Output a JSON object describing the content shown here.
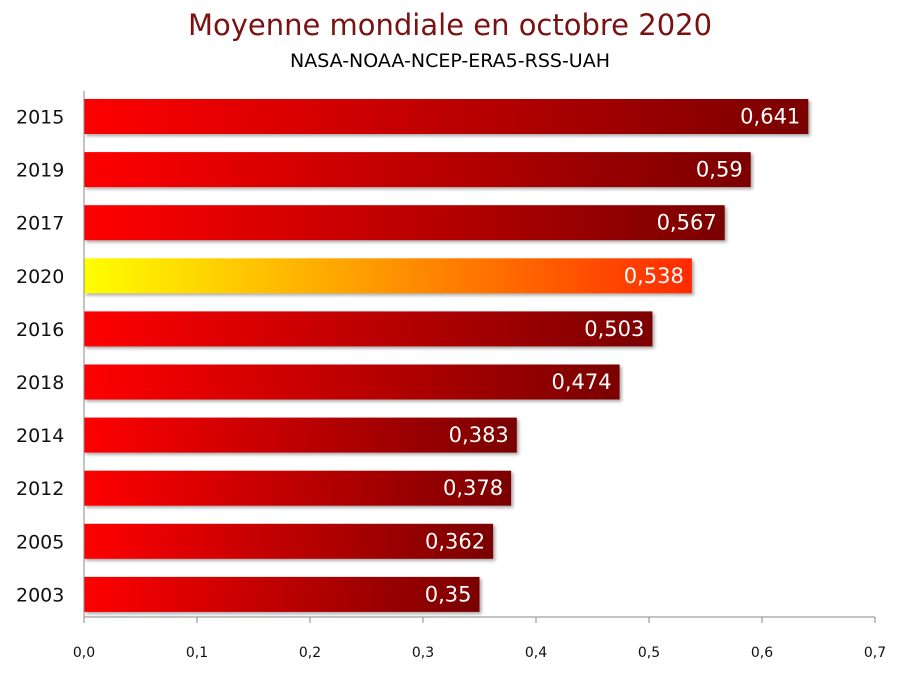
{
  "title": "Moyenne mondiale en octobre 2020",
  "subtitle": "NASA-NOAA-NCEP-ERA5-RSS-UAH",
  "colors": {
    "bar_start": "#ff0000",
    "bar_end": "#7a0000",
    "highlight_start": "#ffff00",
    "highlight_end": "#ff2a00",
    "title": "#7a1212"
  },
  "chart_data": {
    "type": "bar",
    "orientation": "horizontal",
    "categories": [
      "2015",
      "2019",
      "2017",
      "2020",
      "2016",
      "2018",
      "2014",
      "2012",
      "2005",
      "2003"
    ],
    "values": [
      0.641,
      0.59,
      0.567,
      0.538,
      0.503,
      0.474,
      0.383,
      0.378,
      0.362,
      0.35
    ],
    "value_labels": [
      "0,641",
      "0,59",
      "0,567",
      "0,538",
      "0,503",
      "0,474",
      "0,383",
      "0,378",
      "0,362",
      "0,35"
    ],
    "highlight": "2020",
    "xlim": [
      0,
      0.7
    ],
    "xticks": [
      "0,0",
      "0,1",
      "0,2",
      "0,3",
      "0,4",
      "0,5",
      "0,6",
      "0,7"
    ],
    "grid": false,
    "legend": "none"
  }
}
